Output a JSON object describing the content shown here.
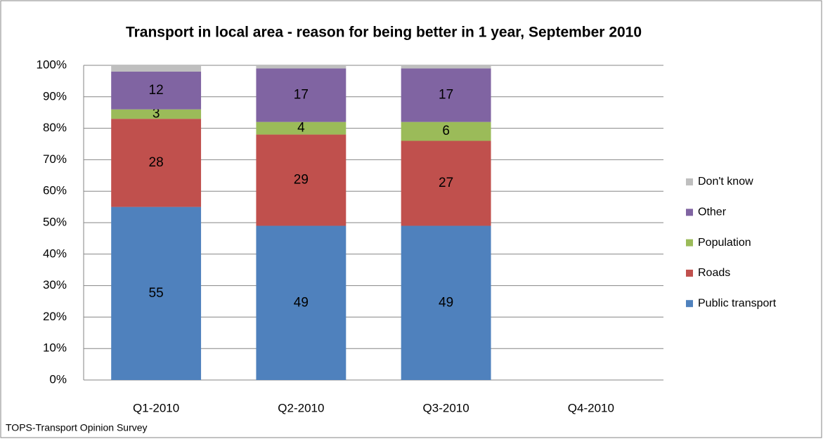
{
  "chart_data": {
    "type": "stacked_bar",
    "title": "Transport in local area - reason for being better in 1 year, September 2010",
    "source": "TOPS-Transport Opinion Survey",
    "categories": [
      "Q1-2010",
      "Q2-2010",
      "Q3-2010",
      "Q4-2010"
    ],
    "series": [
      {
        "name": "Public transport",
        "color": "#4f81bd",
        "labels": true,
        "values": [
          55,
          49,
          49,
          null
        ]
      },
      {
        "name": "Roads",
        "color": "#c0504d",
        "labels": true,
        "values": [
          28,
          29,
          27,
          null
        ]
      },
      {
        "name": "Population",
        "color": "#9bbb59",
        "labels": true,
        "values": [
          3,
          4,
          6,
          null
        ]
      },
      {
        "name": "Other",
        "color": "#8064a2",
        "labels": true,
        "values": [
          12,
          17,
          17,
          null
        ]
      },
      {
        "name": "Don't know",
        "color": "#bfbfbf",
        "labels": false,
        "values": [
          2,
          1,
          1,
          null
        ]
      }
    ],
    "ylim": [
      0,
      100
    ],
    "yticks": [
      {
        "value": 0,
        "label": "0%"
      },
      {
        "value": 10,
        "label": "10%"
      },
      {
        "value": 20,
        "label": "20%"
      },
      {
        "value": 30,
        "label": "30%"
      },
      {
        "value": 40,
        "label": "40%"
      },
      {
        "value": 50,
        "label": "50%"
      },
      {
        "value": 60,
        "label": "60%"
      },
      {
        "value": 70,
        "label": "70%"
      },
      {
        "value": 80,
        "label": "80%"
      },
      {
        "value": 90,
        "label": "90%"
      },
      {
        "value": 100,
        "label": "100%"
      }
    ],
    "grid": true,
    "legend": "right"
  }
}
